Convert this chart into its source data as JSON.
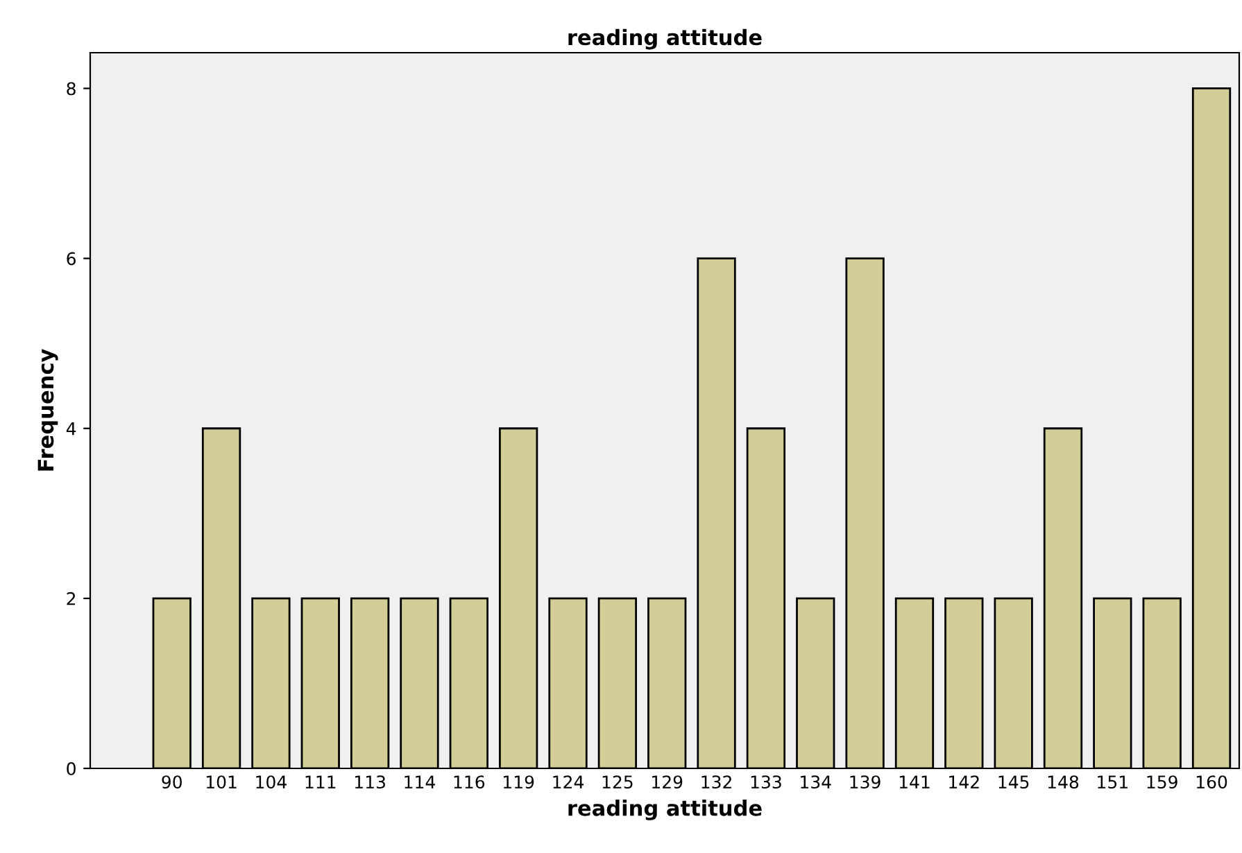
{
  "chart_data": {
    "type": "bar",
    "title": "reading attitude",
    "xlabel": "reading attitude",
    "ylabel": "Frequency",
    "categories": [
      "90",
      "101",
      "104",
      "111",
      "113",
      "114",
      "116",
      "119",
      "124",
      "125",
      "129",
      "132",
      "133",
      "134",
      "139",
      "141",
      "142",
      "145",
      "148",
      "151",
      "159",
      "160"
    ],
    "values": [
      2,
      4,
      2,
      2,
      2,
      2,
      2,
      4,
      2,
      2,
      2,
      6,
      4,
      2,
      6,
      2,
      2,
      2,
      4,
      2,
      2,
      8
    ],
    "color": "#d3ce97",
    "ylim": [
      0,
      8.42
    ],
    "yticks": [
      0,
      2,
      4,
      6,
      8
    ],
    "grid": false,
    "legend": false
  }
}
